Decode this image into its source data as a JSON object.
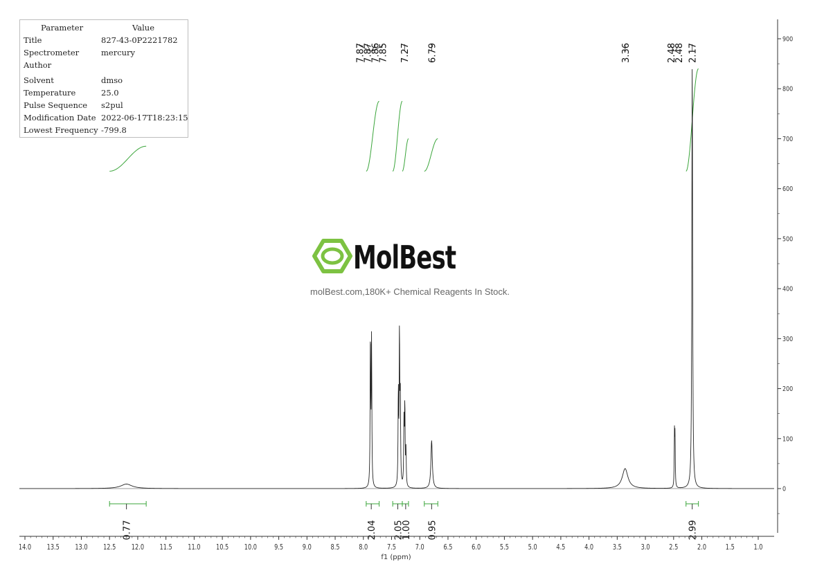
{
  "params": {
    "header": {
      "key": "Parameter",
      "value": "Value"
    },
    "rows": [
      {
        "key": "Title",
        "value": "827-43-0P2221782"
      },
      {
        "key": "Spectrometer",
        "value": "mercury"
      },
      {
        "key": "Author",
        "value": ""
      },
      {
        "key": "Solvent",
        "value": "dmso"
      },
      {
        "key": "Temperature",
        "value": "25.0"
      },
      {
        "key": "Pulse Sequence",
        "value": "s2pul"
      },
      {
        "key": "Modification Date",
        "value": "2022-06-17T18:23:15"
      },
      {
        "key": "Lowest Frequency",
        "value": "-799.8"
      }
    ]
  },
  "watermark": {
    "brand": "MolBest",
    "tagline": "molBest.com,180K+ Chemical Reagents In Stock.",
    "color": "#7dc242"
  },
  "chart_data": {
    "type": "line",
    "xlabel": "f1 (ppm)",
    "ylabel": "",
    "xlim": [
      14.0,
      0.8
    ],
    "ylim": [
      -80,
      950
    ],
    "x_reversed": true,
    "x_ticks": [
      "14.0",
      "13.5",
      "13.0",
      "12.5",
      "12.0",
      "11.5",
      "11.0",
      "10.5",
      "10.0",
      "9.5",
      "9.0",
      "8.5",
      "8.0",
      "7.5",
      "7.0",
      "6.5",
      "6.0",
      "5.5",
      "5.0",
      "4.5",
      "4.0",
      "3.5",
      "3.0",
      "2.5",
      "2.0",
      "1.5",
      "1.0"
    ],
    "y_ticks": [
      "900",
      "800",
      "700",
      "600",
      "500",
      "400",
      "300",
      "200",
      "100",
      "0"
    ],
    "peaks": [
      {
        "ppm": 12.2,
        "height": 9,
        "width": 0.12
      },
      {
        "ppm": 7.875,
        "height": 300,
        "width": 0.006
      },
      {
        "ppm": 7.855,
        "height": 290,
        "width": 0.006
      },
      {
        "ppm": 7.38,
        "height": 185,
        "width": 0.006
      },
      {
        "ppm": 7.36,
        "height": 300,
        "width": 0.006
      },
      {
        "ppm": 7.345,
        "height": 170,
        "width": 0.006
      },
      {
        "ppm": 7.28,
        "height": 125,
        "width": 0.006
      },
      {
        "ppm": 7.265,
        "height": 160,
        "width": 0.006
      },
      {
        "ppm": 7.245,
        "height": 70,
        "width": 0.006
      },
      {
        "ppm": 6.79,
        "height": 96,
        "width": 0.015
      },
      {
        "ppm": 3.36,
        "height": 40,
        "width": 0.06
      },
      {
        "ppm": 2.485,
        "height": 105,
        "width": 0.005
      },
      {
        "ppm": 2.475,
        "height": 100,
        "width": 0.005
      },
      {
        "ppm": 2.17,
        "height": 855,
        "width": 0.008
      }
    ],
    "peak_labels": [
      {
        "text": "7.87",
        "ppm": 7.875
      },
      {
        "text": "7.87",
        "ppm": 7.87
      },
      {
        "text": "7.86",
        "ppm": 7.86
      },
      {
        "text": "7.85",
        "ppm": 7.85
      },
      {
        "text": "7.27",
        "ppm": 7.27
      },
      {
        "text": "6.79",
        "ppm": 6.79
      },
      {
        "text": "3.36",
        "ppm": 3.36
      },
      {
        "text": "2.48",
        "ppm": 2.485
      },
      {
        "text": "2.48",
        "ppm": 2.475
      },
      {
        "text": "2.17",
        "ppm": 2.17
      }
    ],
    "integrals": [
      {
        "from": 12.5,
        "to": 11.85,
        "value": "0.77",
        "label_ppm": 12.2
      },
      {
        "from": 7.95,
        "to": 7.72,
        "value": "2.04",
        "label_ppm": 7.86
      },
      {
        "from": 7.48,
        "to": 7.31,
        "value": "2.05",
        "label_ppm": 7.39
      },
      {
        "from": 7.31,
        "to": 7.2,
        "value": "1.00",
        "label_ppm": 7.25
      },
      {
        "from": 6.92,
        "to": 6.68,
        "value": "0.95",
        "label_ppm": 6.79
      },
      {
        "from": 2.28,
        "to": 2.06,
        "value": "2.99",
        "label_ppm": 2.17
      }
    ],
    "integral_curves": [
      {
        "from": 12.5,
        "to": 11.85,
        "y0": 635,
        "y1": 685
      },
      {
        "from": 7.95,
        "to": 7.72,
        "y0": 635,
        "y1": 775
      },
      {
        "from": 7.48,
        "to": 7.31,
        "y0": 635,
        "y1": 775
      },
      {
        "from": 7.31,
        "to": 7.2,
        "y0": 635,
        "y1": 700
      },
      {
        "from": 6.92,
        "to": 6.68,
        "y0": 635,
        "y1": 700
      },
      {
        "from": 2.28,
        "to": 2.06,
        "y0": 635,
        "y1": 840
      }
    ],
    "colors": {
      "trace": "#222222",
      "integral": "#3aa53a",
      "axis": "#333333"
    },
    "grid": false
  }
}
